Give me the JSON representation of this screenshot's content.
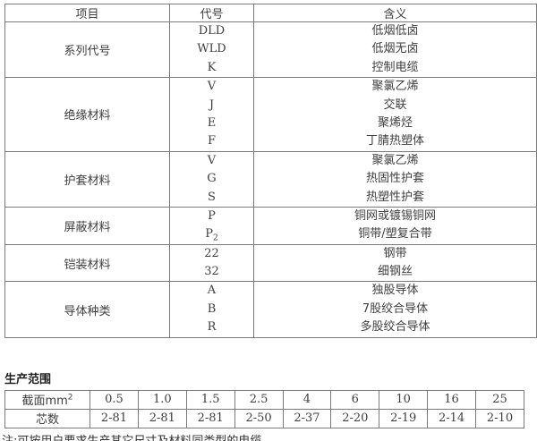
{
  "code_table": {
    "headers": {
      "item": "项目",
      "code": "代号",
      "meaning": "含义"
    },
    "sections": [
      {
        "item": "系列代号",
        "entries": [
          {
            "code": "DLD",
            "meaning": "低烟低卤"
          },
          {
            "code": "WLD",
            "meaning": "低烟无卤"
          },
          {
            "code": "K",
            "meaning": "控制电缆"
          }
        ]
      },
      {
        "item": "绝缘材料",
        "entries": [
          {
            "code": "V",
            "meaning": "聚氯乙烯"
          },
          {
            "code": "J",
            "meaning": "交联"
          },
          {
            "code": "E",
            "meaning": "聚烯烃"
          },
          {
            "code": "F",
            "meaning": "丁腈热塑体"
          }
        ]
      },
      {
        "item": "护套材料",
        "entries": [
          {
            "code": "V",
            "meaning": "聚氯乙烯"
          },
          {
            "code": "G",
            "meaning": "热固性护套"
          },
          {
            "code": "S",
            "meaning": "热塑性护套"
          }
        ]
      },
      {
        "item": "屏蔽材料",
        "entries": [
          {
            "code": "P",
            "meaning": "铜网或镀锡铜网"
          },
          {
            "code": "P",
            "code_sub": "2",
            "meaning": "铜带/塑复合带"
          }
        ]
      },
      {
        "item": "铠装材料",
        "entries": [
          {
            "code": "22",
            "meaning": "钢带"
          },
          {
            "code": "32",
            "meaning": "细钢丝"
          }
        ]
      },
      {
        "item": "导体种类",
        "entries": [
          {
            "code": "A",
            "meaning": "独股导体"
          },
          {
            "code": "B",
            "meaning": "7股绞合导体"
          },
          {
            "code": "R",
            "meaning": "多股绞合导体"
          }
        ]
      }
    ]
  },
  "production_range": {
    "title": "生产范围",
    "cross_section_label_base": "截面mm",
    "cross_section_label_sup": "2",
    "core_count_label": "芯数",
    "cross_sections": [
      "0.5",
      "1.0",
      "1.5",
      "2.5",
      "4",
      "6",
      "10",
      "16",
      "25"
    ],
    "core_counts": [
      "2-81",
      "2-81",
      "2-81",
      "2-50",
      "2-37",
      "2-20",
      "2-19",
      "2-14",
      "2-10"
    ]
  },
  "note": "注:可按用户要求生产其它尺寸及材料同类型的电缆。",
  "colors": {
    "border": "#7a7a7a",
    "text": "#3f3f3f",
    "background": "#ffffff"
  }
}
